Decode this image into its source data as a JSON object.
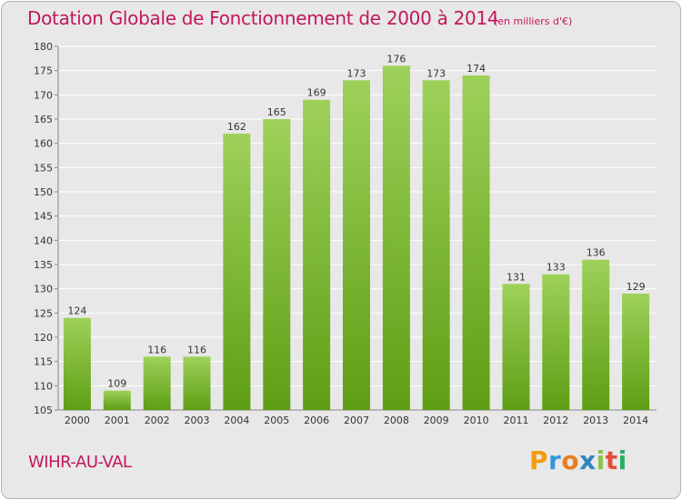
{
  "chart_data": {
    "type": "bar",
    "title": "Dotation Globale de Fonctionnement de 2000 à 2014",
    "subtitle": "(en milliers d'€)",
    "xlabel": "",
    "ylabel": "",
    "categories": [
      "2000",
      "2001",
      "2002",
      "2003",
      "2004",
      "2005",
      "2006",
      "2007",
      "2008",
      "2009",
      "2010",
      "2011",
      "2012",
      "2013",
      "2014"
    ],
    "values": [
      124,
      109,
      116,
      116,
      162,
      165,
      169,
      173,
      176,
      173,
      174,
      131,
      133,
      136,
      129
    ],
    "data_labels": [
      "124",
      "109",
      "116",
      "116",
      "162",
      "165",
      "169",
      "173",
      "176",
      "173",
      "174",
      "131",
      "133",
      "136",
      "129"
    ],
    "ylim": [
      105,
      180
    ],
    "yticks": [
      105,
      110,
      115,
      120,
      125,
      130,
      135,
      140,
      145,
      150,
      155,
      160,
      165,
      170,
      175,
      180
    ],
    "ytick_labels": [
      "105",
      "110",
      "115",
      "120",
      "125",
      "130",
      "135",
      "140",
      "145",
      "150",
      "155",
      "160",
      "165",
      "170",
      "175",
      "180"
    ],
    "grid": true,
    "legend": "none",
    "bar_color_top": "#9ed15a",
    "bar_color_bottom": "#5e9e14",
    "grid_color": "#ffffff",
    "background_color": "#e8e8e8"
  },
  "location": "WIHR-AU-VAL",
  "logo": {
    "letters": [
      "P",
      "r",
      "o",
      "x",
      "i",
      "t",
      "i"
    ],
    "colors": [
      "#f39c12",
      "#3498db",
      "#e67e22",
      "#2e86c1",
      "#8bc34a",
      "#e74c3c",
      "#27ae60"
    ]
  }
}
